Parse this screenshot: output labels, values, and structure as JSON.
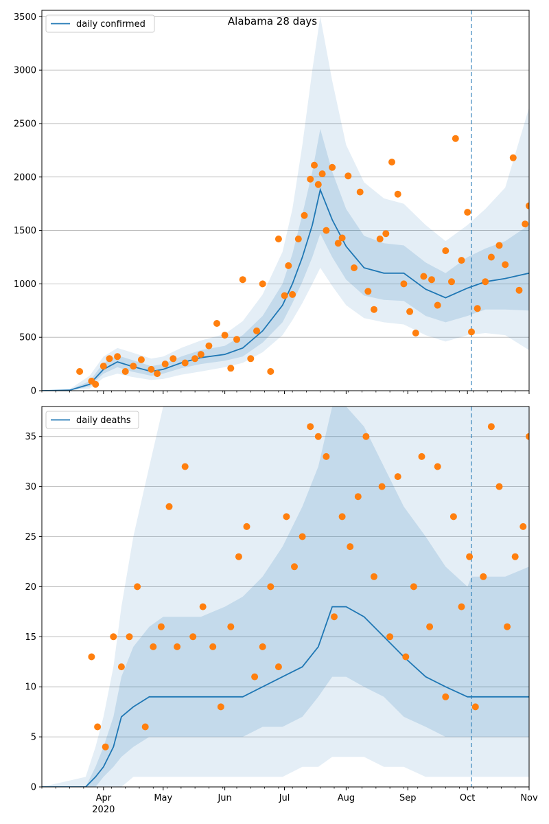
{
  "colors": {
    "line": "#1f77b4",
    "dots": "#ff7f0e",
    "band": "#1f77b4",
    "grid": "#b0b0b0",
    "vline": "#1f77b4"
  },
  "chart_data": [
    {
      "type": "line",
      "title": "Alabama 28 days",
      "legend": "daily confirmed",
      "legend_position": "top-left",
      "ylim": [
        0,
        3560
      ],
      "xlim": [
        "2020-03-01",
        "2020-11-01"
      ],
      "yticks": [
        0,
        500,
        1000,
        1500,
        2000,
        2500,
        3000,
        3500
      ],
      "grid": "y",
      "vline": "2020-10-03",
      "series": {
        "x": [
          "2020-03-01",
          "2020-03-15",
          "2020-03-25",
          "2020-04-01",
          "2020-04-08",
          "2020-04-15",
          "2020-04-25",
          "2020-05-01",
          "2020-05-10",
          "2020-05-20",
          "2020-06-01",
          "2020-06-10",
          "2020-06-20",
          "2020-06-30",
          "2020-07-05",
          "2020-07-10",
          "2020-07-15",
          "2020-07-19",
          "2020-07-25",
          "2020-08-01",
          "2020-08-10",
          "2020-08-20",
          "2020-08-30",
          "2020-09-10",
          "2020-09-20",
          "2020-10-01",
          "2020-10-10",
          "2020-10-20",
          "2020-11-01"
        ],
        "y": [
          0,
          5,
          60,
          200,
          270,
          230,
          180,
          200,
          260,
          310,
          340,
          400,
          560,
          800,
          1000,
          1250,
          1550,
          1880,
          1600,
          1350,
          1150,
          1100,
          1100,
          950,
          870,
          960,
          1020,
          1050,
          1100
        ],
        "band_outer_lo": [
          0,
          0,
          20,
          120,
          160,
          130,
          100,
          110,
          150,
          180,
          220,
          260,
          360,
          520,
          660,
          820,
          1000,
          1150,
          980,
          800,
          680,
          640,
          620,
          520,
          460,
          520,
          540,
          520,
          380
        ],
        "band_outer_hi": [
          0,
          15,
          140,
          320,
          400,
          360,
          300,
          320,
          400,
          470,
          530,
          650,
          900,
          1300,
          1700,
          2300,
          3000,
          3500,
          2900,
          2300,
          1950,
          1800,
          1750,
          1550,
          1400,
          1550,
          1700,
          1900,
          2650
        ],
        "band_inner_lo": [
          0,
          2,
          40,
          160,
          220,
          180,
          140,
          160,
          210,
          250,
          280,
          320,
          450,
          640,
          820,
          1020,
          1250,
          1470,
          1250,
          1040,
          890,
          850,
          840,
          700,
          640,
          700,
          760,
          760,
          750
        ],
        "band_inner_hi": [
          0,
          9,
          90,
          260,
          330,
          290,
          230,
          250,
          320,
          380,
          420,
          520,
          700,
          1000,
          1280,
          1650,
          2050,
          2450,
          2050,
          1700,
          1450,
          1380,
          1360,
          1200,
          1100,
          1250,
          1330,
          1400,
          1550
        ]
      },
      "observed": {
        "x": [
          "2020-03-20",
          "2020-03-26",
          "2020-03-28",
          "2020-04-01",
          "2020-04-04",
          "2020-04-08",
          "2020-04-12",
          "2020-04-16",
          "2020-04-20",
          "2020-04-25",
          "2020-04-28",
          "2020-05-02",
          "2020-05-06",
          "2020-05-12",
          "2020-05-17",
          "2020-05-20",
          "2020-05-24",
          "2020-05-28",
          "2020-06-01",
          "2020-06-04",
          "2020-06-07",
          "2020-06-10",
          "2020-06-14",
          "2020-06-17",
          "2020-06-20",
          "2020-06-24",
          "2020-06-28",
          "2020-07-01",
          "2020-07-03",
          "2020-07-05",
          "2020-07-08",
          "2020-07-11",
          "2020-07-14",
          "2020-07-16",
          "2020-07-18",
          "2020-07-20",
          "2020-07-22",
          "2020-07-25",
          "2020-07-28",
          "2020-07-30",
          "2020-08-02",
          "2020-08-05",
          "2020-08-08",
          "2020-08-12",
          "2020-08-15",
          "2020-08-18",
          "2020-08-21",
          "2020-08-24",
          "2020-08-27",
          "2020-08-30",
          "2020-09-02",
          "2020-09-05",
          "2020-09-09",
          "2020-09-13",
          "2020-09-16",
          "2020-09-20",
          "2020-09-23",
          "2020-09-25",
          "2020-09-28",
          "2020-10-01",
          "2020-10-03",
          "2020-10-06",
          "2020-10-10",
          "2020-10-13",
          "2020-10-17",
          "2020-10-20",
          "2020-10-24",
          "2020-10-27",
          "2020-10-30",
          "2020-11-01"
        ],
        "y": [
          180,
          90,
          60,
          230,
          300,
          320,
          180,
          230,
          290,
          200,
          160,
          250,
          300,
          260,
          300,
          340,
          420,
          630,
          520,
          210,
          480,
          1040,
          300,
          560,
          1000,
          180,
          1420,
          890,
          1170,
          900,
          1420,
          1640,
          1980,
          2110,
          1930,
          2030,
          1500,
          2090,
          1380,
          1430,
          2010,
          1150,
          1860,
          930,
          760,
          1420,
          1470,
          2140,
          1840,
          1000,
          740,
          540,
          1070,
          1040,
          800,
          1310,
          1020,
          2360,
          1220,
          1670,
          550,
          770,
          1020,
          1250,
          1360,
          1180,
          2180,
          940,
          1560,
          1730
        ]
      }
    },
    {
      "type": "line",
      "title": "",
      "legend": "daily deaths",
      "legend_position": "top-left",
      "ylim": [
        0,
        38
      ],
      "xlim": [
        "2020-03-01",
        "2020-11-01"
      ],
      "yticks": [
        0,
        5,
        10,
        15,
        20,
        25,
        30,
        35
      ],
      "grid": "y",
      "vline": "2020-10-03",
      "xtick_labels": [
        {
          "date": "2020-04-01",
          "label": "Apr",
          "sublabel": "2020"
        },
        {
          "date": "2020-05-01",
          "label": "May"
        },
        {
          "date": "2020-06-01",
          "label": "Jun"
        },
        {
          "date": "2020-07-01",
          "label": "Jul"
        },
        {
          "date": "2020-08-01",
          "label": "Aug"
        },
        {
          "date": "2020-09-01",
          "label": "Sep"
        },
        {
          "date": "2020-10-01",
          "label": "Oct"
        },
        {
          "date": "2020-11-01",
          "label": "Nov"
        }
      ],
      "series": {
        "x": [
          "2020-03-01",
          "2020-03-23",
          "2020-03-28",
          "2020-04-01",
          "2020-04-06",
          "2020-04-10",
          "2020-04-16",
          "2020-04-24",
          "2020-05-01",
          "2020-05-10",
          "2020-05-20",
          "2020-06-01",
          "2020-06-10",
          "2020-06-20",
          "2020-06-30",
          "2020-07-10",
          "2020-07-18",
          "2020-07-25",
          "2020-08-01",
          "2020-08-10",
          "2020-08-20",
          "2020-08-30",
          "2020-09-10",
          "2020-09-20",
          "2020-10-01",
          "2020-10-03",
          "2020-10-10",
          "2020-10-20",
          "2020-11-01"
        ],
        "y": [
          0,
          0,
          1,
          2,
          4,
          7,
          8,
          9,
          9,
          9,
          9,
          9,
          9,
          10,
          11,
          12,
          14,
          18,
          18,
          17,
          15,
          13,
          11,
          10,
          9,
          9,
          9,
          9,
          9
        ],
        "band_outer_lo": [
          0,
          0,
          0,
          0,
          0,
          0,
          1,
          1,
          1,
          1,
          1,
          1,
          1,
          1,
          1,
          2,
          2,
          3,
          3,
          3,
          2,
          2,
          1,
          1,
          1,
          1,
          1,
          1,
          1
        ],
        "band_outer_hi": [
          0,
          1,
          4,
          7,
          12,
          18,
          25,
          32,
          38,
          38,
          38,
          38,
          38,
          38,
          38,
          38,
          38,
          38,
          38,
          38,
          38,
          38,
          38,
          38,
          38,
          38,
          38,
          38,
          38
        ],
        "band_inner_lo": [
          0,
          0,
          0,
          1,
          2,
          3,
          4,
          5,
          5,
          5,
          5,
          5,
          5,
          6,
          6,
          7,
          9,
          11,
          11,
          10,
          9,
          7,
          6,
          5,
          5,
          5,
          5,
          5,
          5
        ],
        "band_inner_hi": [
          0,
          0,
          2,
          4,
          7,
          11,
          14,
          16,
          17,
          17,
          17,
          18,
          19,
          21,
          24,
          28,
          32,
          38,
          38,
          36,
          32,
          28,
          25,
          22,
          20,
          21,
          21,
          21,
          22
        ]
      },
      "observed": {
        "x": [
          "2020-03-26",
          "2020-03-29",
          "2020-04-02",
          "2020-04-06",
          "2020-04-10",
          "2020-04-14",
          "2020-04-18",
          "2020-04-22",
          "2020-04-26",
          "2020-04-30",
          "2020-05-04",
          "2020-05-08",
          "2020-05-12",
          "2020-05-16",
          "2020-05-21",
          "2020-05-26",
          "2020-05-30",
          "2020-06-04",
          "2020-06-08",
          "2020-06-12",
          "2020-06-16",
          "2020-06-20",
          "2020-06-24",
          "2020-06-28",
          "2020-07-02",
          "2020-07-06",
          "2020-07-10",
          "2020-07-14",
          "2020-07-18",
          "2020-07-22",
          "2020-07-26",
          "2020-07-30",
          "2020-08-03",
          "2020-08-07",
          "2020-08-11",
          "2020-08-15",
          "2020-08-19",
          "2020-08-23",
          "2020-08-27",
          "2020-08-31",
          "2020-09-04",
          "2020-09-08",
          "2020-09-12",
          "2020-09-16",
          "2020-09-20",
          "2020-09-24",
          "2020-09-28",
          "2020-10-02",
          "2020-10-05",
          "2020-10-09",
          "2020-10-13",
          "2020-10-17",
          "2020-10-21",
          "2020-10-25",
          "2020-10-29",
          "2020-11-01"
        ],
        "y": [
          13,
          6,
          4,
          15,
          12,
          15,
          20,
          6,
          14,
          16,
          28,
          14,
          32,
          15,
          18,
          14,
          8,
          16,
          23,
          26,
          11,
          14,
          20,
          12,
          27,
          22,
          25,
          36,
          35,
          33,
          17,
          27,
          24,
          29,
          35,
          21,
          30,
          15,
          31,
          13,
          20,
          33,
          16,
          32,
          9,
          27,
          18,
          23,
          8,
          21,
          36,
          30,
          16,
          23,
          26,
          35
        ]
      }
    }
  ]
}
